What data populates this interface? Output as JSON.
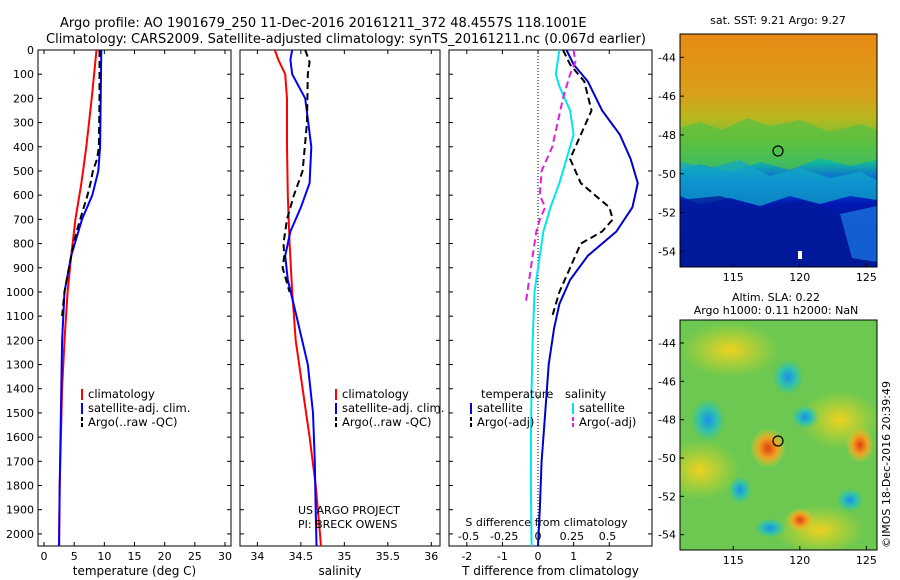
{
  "header": {
    "line1": "Argo profile: AO 1901679_250 11-Dec-2016 20161211_372 48.4557S 118.1001E",
    "line2": "Climatology: CARS2009. Satellite-adjusted climatology: synTS_20161211.nc (0.067d earlier)"
  },
  "credits": {
    "project": "US ARGO PROJECT",
    "pi": "PI: BRECK OWENS",
    "imos": "©IMOS 18-Dec-2016 20:39:49"
  },
  "colors": {
    "climatology": "#ff0000",
    "satellite": "#0000ff",
    "argo": "#000000",
    "satellite_s": "#00e5ee",
    "argo_s": "#dd22dd",
    "satellite_t": "#0000cc"
  },
  "chart_data": [
    {
      "id": "temperature",
      "type": "line",
      "xlabel": "temperature (deg C)",
      "ylabel": "",
      "xlim": [
        -1,
        31
      ],
      "ylim": [
        2050,
        0
      ],
      "xticks": [
        0,
        5,
        10,
        15,
        20,
        25,
        30
      ],
      "xticklabels": [
        "0",
        "5",
        "10",
        "15",
        "20",
        "25",
        "30"
      ],
      "yticks": [
        0,
        100,
        200,
        300,
        400,
        500,
        600,
        700,
        800,
        900,
        1000,
        1100,
        1200,
        1300,
        1400,
        1500,
        1600,
        1700,
        1800,
        1900,
        2000
      ],
      "yticklabels": [
        "0",
        "100",
        "200",
        "300",
        "400",
        "500",
        "600",
        "700",
        "800",
        "900",
        "1000",
        "1100",
        "1200",
        "1300",
        "1400",
        "1500",
        "1600",
        "1700",
        "1800",
        "1900",
        "2000"
      ],
      "legend": {
        "position": "lower-center",
        "entries": [
          "climatology",
          "satellite-adj. clim.",
          "Argo(..raw -QC)"
        ]
      },
      "series": [
        {
          "name": "climatology",
          "style": "solid",
          "color": "#ff0000",
          "x": [
            8.7,
            7.9,
            7.0,
            6.2,
            5.2,
            4.5,
            3.9,
            3.4,
            3.0,
            2.8,
            2.6,
            2.55,
            2.5,
            2.5
          ],
          "y": [
            0,
            200,
            400,
            550,
            700,
            850,
            1000,
            1200,
            1400,
            1600,
            1800,
            1900,
            2000,
            2050
          ]
        },
        {
          "name": "satellite-adj. clim.",
          "style": "solid",
          "color": "#0000ff",
          "x": [
            9.5,
            9.4,
            9.3,
            9.0,
            8.0,
            6.3,
            4.5,
            3.4,
            3.0,
            2.8,
            2.6,
            2.5
          ],
          "y": [
            0,
            200,
            400,
            500,
            600,
            700,
            850,
            1000,
            1200,
            1500,
            1800,
            2050
          ]
        },
        {
          "name": "Argo(..raw -QC)",
          "style": "dashed",
          "color": "#000000",
          "x": [
            9.2,
            9.2,
            9.1,
            8.8,
            8.1,
            7.7,
            7.2,
            6.6,
            5.4,
            4.5,
            3.4,
            3.0
          ],
          "y": [
            0,
            200,
            400,
            450,
            500,
            550,
            600,
            650,
            750,
            850,
            1000,
            1100
          ]
        }
      ]
    },
    {
      "id": "salinity",
      "type": "line",
      "xlabel": "salinity",
      "ylabel": "",
      "xlim": [
        33.8,
        36.1
      ],
      "ylim": [
        2050,
        0
      ],
      "xticks": [
        34,
        34.5,
        35,
        35.5,
        36
      ],
      "xticklabels": [
        "34",
        "34.5",
        "35",
        "35.5",
        "36"
      ],
      "legend": {
        "position": "lower-center",
        "entries": [
          "climatology",
          "satellite-adj. clim.",
          "Argo(..raw -QC)"
        ]
      },
      "series": [
        {
          "name": "climatology",
          "style": "solid",
          "color": "#ff0000",
          "x": [
            34.2,
            34.24,
            34.32,
            34.34,
            34.34,
            34.35,
            34.37,
            34.4,
            34.44,
            34.52,
            34.6,
            34.67,
            34.72,
            34.73
          ],
          "y": [
            0,
            40,
            100,
            200,
            400,
            600,
            800,
            1000,
            1200,
            1400,
            1600,
            1800,
            2000,
            2050
          ]
        },
        {
          "name": "satellite-adj. clim.",
          "style": "solid",
          "color": "#0000ff",
          "x": [
            34.4,
            34.38,
            34.4,
            34.55,
            34.62,
            34.6,
            34.5,
            34.38,
            34.32,
            34.35,
            34.45,
            34.58,
            34.64,
            34.66,
            34.67,
            34.68
          ],
          "y": [
            0,
            40,
            100,
            200,
            400,
            550,
            650,
            750,
            850,
            950,
            1100,
            1300,
            1500,
            1700,
            1900,
            2050
          ]
        },
        {
          "name": "Argo(..raw -QC)",
          "style": "dashed",
          "color": "#000000",
          "x": [
            34.55,
            34.6,
            34.58,
            34.57,
            34.52,
            34.42,
            34.38,
            34.34,
            34.32,
            34.3,
            34.31,
            34.29,
            34.33,
            34.37
          ],
          "y": [
            0,
            50,
            100,
            300,
            500,
            600,
            650,
            700,
            750,
            800,
            850,
            900,
            950,
            1000
          ]
        }
      ]
    },
    {
      "id": "difference",
      "type": "line",
      "xlabel": "T difference from climatology",
      "xlabel2": "S difference from climatology",
      "ylabel": "",
      "xlim": [
        -2.5,
        3.2
      ],
      "ylim": [
        2050,
        0
      ],
      "xticks": [
        -2,
        -1,
        0,
        1,
        2
      ],
      "xticklabels": [
        "-2",
        "-1",
        "0",
        "1",
        "2"
      ],
      "sticks_label": [
        "-0.5",
        "-0.25",
        "0",
        "0.25",
        "0.5"
      ],
      "legend": {
        "position": "lower-center",
        "entries": [
          "temperature",
          "satellite",
          "Argo(-adj)",
          "salinity",
          "satellite",
          "Argo(-adj)"
        ]
      },
      "series": [
        {
          "name": "temperature satellite",
          "style": "solid",
          "color": "#0000cc",
          "x": [
            0.8,
            1.0,
            1.4,
            1.8,
            2.3,
            2.6,
            2.8,
            2.65,
            2.2,
            1.4,
            0.9,
            0.6,
            0.45,
            0.3,
            0.2,
            0.1,
            0.05,
            0.0
          ],
          "y": [
            0,
            60,
            130,
            250,
            350,
            450,
            550,
            650,
            750,
            850,
            950,
            1050,
            1150,
            1300,
            1500,
            1700,
            1900,
            2050
          ]
        },
        {
          "name": "temperature Argo(-adj)",
          "style": "dashed",
          "color": "#000000",
          "x": [
            0.7,
            0.9,
            1.3,
            1.5,
            1.2,
            0.9,
            1.2,
            1.6,
            2.0,
            2.1,
            1.8,
            1.2,
            0.9,
            0.6,
            0.4
          ],
          "y": [
            0,
            60,
            130,
            250,
            350,
            450,
            550,
            600,
            650,
            700,
            750,
            800,
            900,
            1000,
            1100
          ]
        },
        {
          "name": "salinity satellite",
          "style": "solid",
          "color": "#00e5ee",
          "x": [
            0.6,
            0.55,
            0.5,
            0.6,
            0.9,
            1.0,
            0.8,
            0.6,
            0.35,
            0.15,
            0.05,
            -0.1,
            -0.15,
            -0.18,
            -0.2,
            -0.2,
            -0.18
          ],
          "y": [
            0,
            50,
            100,
            150,
            250,
            350,
            450,
            550,
            650,
            750,
            850,
            1000,
            1200,
            1400,
            1600,
            1800,
            2050
          ]
        },
        {
          "name": "salinity Argo(-adj)",
          "style": "dashed",
          "color": "#dd22dd",
          "x": [
            1.0,
            1.05,
            0.9,
            0.7,
            0.4,
            0.1,
            0.05,
            0.2,
            0.05,
            -0.05,
            -0.1,
            -0.2,
            -0.3,
            -0.35
          ],
          "y": [
            0,
            50,
            100,
            200,
            400,
            500,
            600,
            650,
            700,
            750,
            800,
            900,
            1000,
            1050
          ]
        }
      ]
    },
    {
      "id": "sst_map",
      "type": "heatmap",
      "title": "sat. SST: 9.21  Argo: 9.27",
      "xlim": [
        111,
        125.8
      ],
      "ylim": [
        -54.8,
        -42.8
      ],
      "xticks": [
        115,
        120,
        125
      ],
      "xticklabels": [
        "115",
        "120",
        "125"
      ],
      "yticks": [
        -44,
        -46,
        -48,
        -50,
        -52,
        -54
      ],
      "yticklabels": [
        "-44",
        "-46",
        "-48",
        "-50",
        "-52",
        "-54"
      ],
      "marker": {
        "lon": 118.1,
        "lat": -48.46
      }
    },
    {
      "id": "sla_map",
      "type": "heatmap",
      "title": "Altim. SLA: 0.22",
      "subtitle": "Argo h1000: 0.11 h2000: NaN",
      "xlim": [
        111,
        125.8
      ],
      "ylim": [
        -54.8,
        -42.8
      ],
      "xticks": [
        115,
        120,
        125
      ],
      "xticklabels": [
        "115",
        "120",
        "125"
      ],
      "yticks": [
        -44,
        -46,
        -48,
        -50,
        -52,
        -54
      ],
      "yticklabels": [
        "-44",
        "-46",
        "-48",
        "-50",
        "-52",
        "-54"
      ],
      "marker": {
        "lon": 118.1,
        "lat": -48.46
      }
    }
  ]
}
